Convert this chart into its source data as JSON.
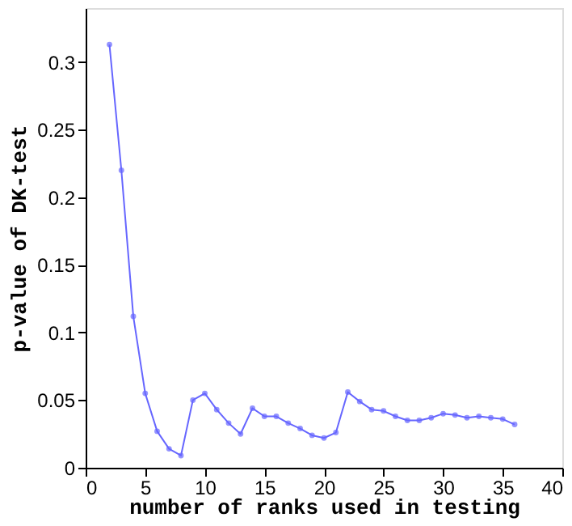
{
  "chart_data": {
    "type": "line",
    "xlabel": "number of ranks used in testing",
    "ylabel": "p-value of DK-test",
    "x": [
      2,
      3,
      4,
      5,
      6,
      7,
      8,
      9,
      10,
      11,
      12,
      13,
      14,
      15,
      16,
      17,
      18,
      19,
      20,
      21,
      22,
      23,
      24,
      25,
      26,
      27,
      28,
      29,
      30,
      31,
      32,
      33,
      34,
      35,
      36
    ],
    "series": [
      {
        "color": "#6666ff",
        "values": [
          0.313,
          0.22,
          0.112,
          0.055,
          0.027,
          0.014,
          0.009,
          0.05,
          0.055,
          0.043,
          0.033,
          0.025,
          0.044,
          0.038,
          0.038,
          0.033,
          0.029,
          0.024,
          0.022,
          0.026,
          0.056,
          0.049,
          0.043,
          0.042,
          0.038,
          0.035,
          0.035,
          0.037,
          0.04,
          0.039,
          0.037,
          0.038,
          0.037,
          0.036,
          0.032
        ]
      }
    ],
    "xlim": [
      0,
      40
    ],
    "xticks": [
      0,
      5,
      10,
      15,
      20,
      25,
      30,
      35,
      40
    ],
    "ylim": [
      0,
      0.34
    ],
    "yticks": [
      0,
      0.05,
      0.1,
      0.15,
      0.2,
      0.25,
      0.3
    ],
    "marker": "circle",
    "line_style": "solid",
    "grid": false
  }
}
